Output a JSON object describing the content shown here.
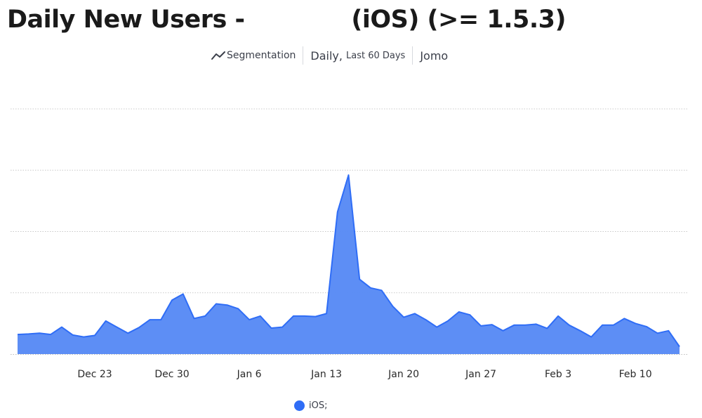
{
  "report": {
    "title": "Daily New Users -             (iOS) (>= 1.5.3)",
    "segmentation_label": "Segmentation",
    "segmentation_icon": "line-chart-icon",
    "interval_label": "Daily,",
    "range_label": "Last 60 Days",
    "environment_label": "Jomo"
  },
  "colors": {
    "series": "#2f6df6",
    "fill": "#5a8cf5",
    "grid": "#c9c9c9",
    "axis": "#bdbdbd"
  },
  "chart_data": {
    "type": "area",
    "title": "Daily New Users -             (iOS) (>= 1.5.3)",
    "xlabel": "",
    "ylabel": "",
    "x_start": "2023-12-16",
    "x_ticks": [
      {
        "date": "2023-12-23",
        "label": "Dec 23"
      },
      {
        "date": "2023-12-30",
        "label": "Dec 30"
      },
      {
        "date": "2024-01-06",
        "label": "Jan 6"
      },
      {
        "date": "2024-01-13",
        "label": "Jan 13"
      },
      {
        "date": "2024-01-20",
        "label": "Jan 20"
      },
      {
        "date": "2024-01-27",
        "label": "Jan 27"
      },
      {
        "date": "2024-02-03",
        "label": "Feb 3"
      },
      {
        "date": "2024-02-10",
        "label": "Feb 10"
      }
    ],
    "ylim": [
      0,
      100
    ],
    "y_ticks_labeled": false,
    "grid": true,
    "legend_position": "bottom-center",
    "series": [
      {
        "name": "iOS;",
        "values": [
          8,
          8.2,
          8.5,
          8,
          11,
          7.8,
          7,
          7.6,
          13.5,
          11,
          8.5,
          10.8,
          14,
          14,
          22,
          24.5,
          14.5,
          15.5,
          20.5,
          20,
          18.5,
          14,
          15.5,
          10.6,
          11,
          15.5,
          15.5,
          15.3,
          16.5,
          58,
          73,
          30.5,
          27,
          26,
          19.5,
          15,
          16.5,
          14,
          11,
          13.5,
          17.2,
          16,
          11.5,
          12,
          9.5,
          11.8,
          11.8,
          12.2,
          10.5,
          15.5,
          11.8,
          9.5,
          7,
          11.8,
          11.8,
          14.5,
          12.5,
          11.2,
          8.5,
          9.5,
          3
        ]
      }
    ]
  }
}
